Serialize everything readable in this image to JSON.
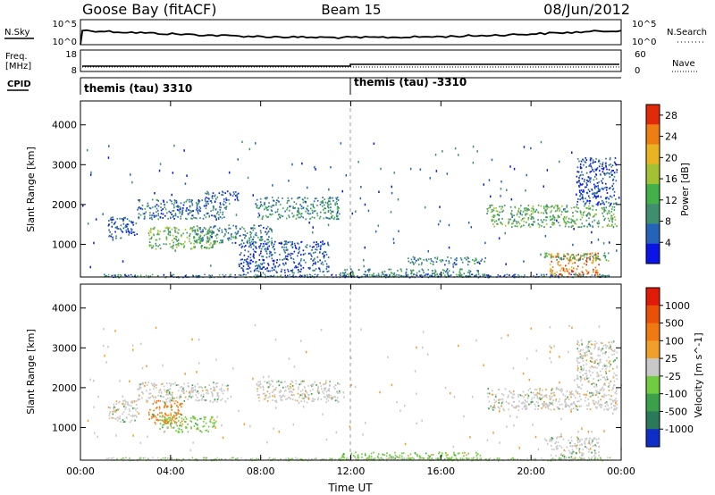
{
  "header": {
    "station": "Goose Bay (fitACF)",
    "beam": "Beam 15",
    "date": "08/Jun/2012"
  },
  "strips": {
    "nsky_label": "N.Sky",
    "nsearch_label": "N.Search",
    "noise_ticks_left": [
      "10^5",
      "10^0"
    ],
    "noise_ticks_right": [
      "10^5",
      "10^0"
    ],
    "freq_label_1": "Freq.",
    "freq_label_2": "[MHz]",
    "freq_ticks": [
      "18",
      "8"
    ],
    "nave_label": "Nave",
    "nave_ticks": [
      "60",
      "0"
    ],
    "cpid_label": "CPID",
    "cpid_segments": [
      {
        "label": "themis (tau) 3310",
        "start_hour": 0
      },
      {
        "label": "themis (tau) -3310",
        "start_hour": 12
      }
    ]
  },
  "chart_data": [
    {
      "type": "heatmap",
      "name": "power-panel",
      "ylabel": "Slant Range [km]",
      "y_ticks": [
        "1000",
        "2000",
        "3000",
        "4000"
      ],
      "ylim": [
        180,
        4600
      ],
      "x_ticks": [
        "00:00",
        "04:00",
        "08:00",
        "12:00",
        "16:00",
        "20:00",
        "00:00"
      ],
      "xlim": [
        0,
        24
      ],
      "colorbar": {
        "label": "Power [dB]",
        "ticks": [
          "4",
          "8",
          "12",
          "16",
          "20",
          "24",
          "28"
        ],
        "range": [
          0,
          30
        ],
        "colors": [
          "#0a14e6",
          "#2563b8",
          "#3f8f6e",
          "#44b04a",
          "#a2c234",
          "#e8b422",
          "#ee7d12",
          "#e22a0a"
        ]
      },
      "regions": [
        {
          "t": [
            1.2,
            2.5
          ],
          "r": [
            1150,
            1700
          ],
          "level": 5
        },
        {
          "t": [
            2.5,
            6.6
          ],
          "r": [
            1650,
            2150
          ],
          "level": 7
        },
        {
          "t": [
            3.0,
            6.0
          ],
          "r": [
            900,
            1450
          ],
          "level": 14
        },
        {
          "t": [
            5.0,
            8.5
          ],
          "r": [
            1050,
            1500
          ],
          "level": 8
        },
        {
          "t": [
            5.5,
            7.0
          ],
          "r": [
            2100,
            2350
          ],
          "level": 6
        },
        {
          "t": [
            7.8,
            11.5
          ],
          "r": [
            1650,
            2200
          ],
          "level": 9
        },
        {
          "t": [
            7.0,
            11.0
          ],
          "r": [
            300,
            1100
          ],
          "level": 5
        },
        {
          "t": [
            11.5,
            18.0
          ],
          "r": [
            200,
            400
          ],
          "level": 10
        },
        {
          "t": [
            14.5,
            18.0
          ],
          "r": [
            500,
            700
          ],
          "level": 8
        },
        {
          "t": [
            18.0,
            23.8
          ],
          "r": [
            1450,
            2000
          ],
          "level": 13
        },
        {
          "t": [
            20.8,
            23.0
          ],
          "r": [
            200,
            800
          ],
          "level": 24
        },
        {
          "t": [
            22.0,
            23.8
          ],
          "r": [
            2000,
            3200
          ],
          "level": 5
        },
        {
          "t": [
            20.5,
            23.5
          ],
          "r": [
            600,
            800
          ],
          "level": 12
        }
      ]
    },
    {
      "type": "heatmap",
      "name": "velocity-panel",
      "ylabel": "Slant Range [km]",
      "y_ticks": [
        "1000",
        "2000",
        "3000",
        "4000"
      ],
      "ylim": [
        180,
        4600
      ],
      "x_ticks": [
        "00:00",
        "04:00",
        "08:00",
        "12:00",
        "16:00",
        "20:00",
        "00:00"
      ],
      "xlabel": "Time UT",
      "xlim": [
        0,
        24
      ],
      "colorbar": {
        "label": "Velocity [m s^-1]",
        "ticks": [
          "1000",
          "500",
          "100",
          "25",
          "-25",
          "-100",
          "-500",
          "-1000"
        ],
        "colors": [
          "#0f2ec8",
          "#2a7a5a",
          "#3aa14a",
          "#70cc40",
          "#c8c8c8",
          "#f0a02a",
          "#f07a10",
          "#ea5008",
          "#e21a08"
        ]
      },
      "regions": [
        {
          "t": [
            1.2,
            2.5
          ],
          "r": [
            1150,
            1700
          ],
          "level": "gray"
        },
        {
          "t": [
            2.5,
            6.6
          ],
          "r": [
            1650,
            2150
          ],
          "level": "gray"
        },
        {
          "t": [
            3.0,
            4.5
          ],
          "r": [
            1100,
            1700
          ],
          "level": "orange"
        },
        {
          "t": [
            3.5,
            6.0
          ],
          "r": [
            900,
            1300
          ],
          "level": "green"
        },
        {
          "t": [
            7.8,
            11.5
          ],
          "r": [
            1650,
            2200
          ],
          "level": "gray"
        },
        {
          "t": [
            11.5,
            18.0
          ],
          "r": [
            200,
            400
          ],
          "level": "green"
        },
        {
          "t": [
            18.0,
            23.8
          ],
          "r": [
            1450,
            2000
          ],
          "level": "gray"
        },
        {
          "t": [
            20.8,
            23.0
          ],
          "r": [
            200,
            800
          ],
          "level": "gray"
        },
        {
          "t": [
            22.0,
            23.8
          ],
          "r": [
            2000,
            3200
          ],
          "level": "gray"
        }
      ]
    }
  ]
}
